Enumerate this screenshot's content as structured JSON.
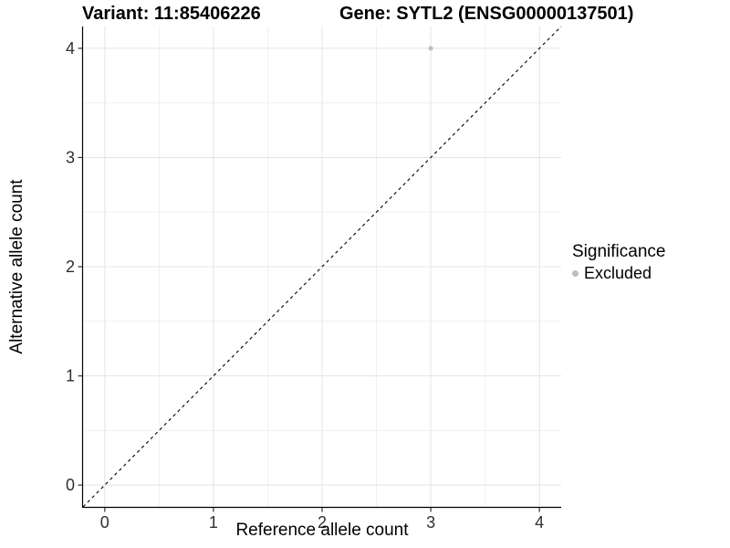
{
  "title": {
    "variant": "Variant: 11:85406226",
    "gene": "Gene: SYTL2 (ENSG00000137501)"
  },
  "chart_data": {
    "type": "scatter",
    "title": "Variant: 11:85406226  /  Gene: SYTL2 (ENSG00000137501)",
    "xlabel": "Reference allele count",
    "ylabel": "Alternative allele count",
    "xlim": [
      -0.2,
      4.2
    ],
    "ylim": [
      -0.2,
      4.2
    ],
    "x_ticks": [
      0,
      1,
      2,
      3,
      4
    ],
    "y_ticks": [
      0,
      1,
      2,
      3,
      4
    ],
    "x_minor_ticks": [
      0.5,
      1.5,
      2.5,
      3.5
    ],
    "y_minor_ticks": [
      0.5,
      1.5,
      2.5,
      3.5
    ],
    "grid": true,
    "series": [
      {
        "name": "Excluded",
        "color": "#bebebe",
        "points": [
          {
            "x": 3,
            "y": 4
          }
        ]
      }
    ],
    "identity_line": {
      "style": "dashed",
      "from": [
        -0.2,
        -0.2
      ],
      "to": [
        4.2,
        4.2
      ],
      "color": "#000000"
    },
    "legend": {
      "title": "Significance",
      "position": "right",
      "entries": [
        {
          "label": "Excluded",
          "color": "#bebebe"
        }
      ]
    }
  },
  "colors": {
    "background": "#ffffff",
    "grid_major": "#e4e4e4",
    "grid_minor": "#f1f1f1",
    "axis_line": "#000000",
    "tick_mark": "#333333",
    "tick_label": "#303030",
    "point": "#bebebe"
  }
}
